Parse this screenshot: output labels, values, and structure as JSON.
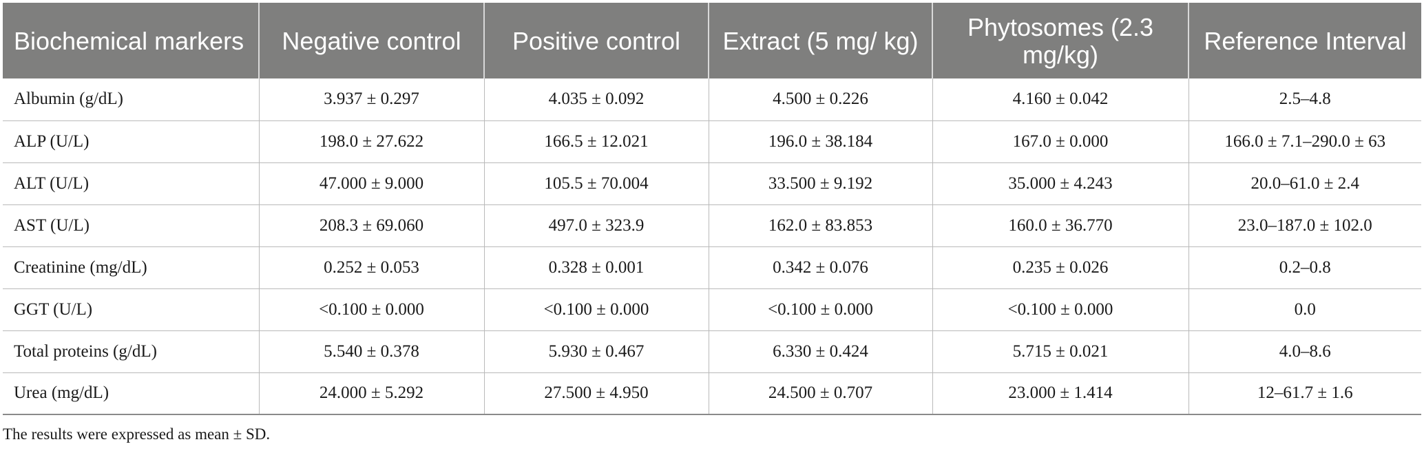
{
  "table": {
    "headers": [
      "Biochemical markers",
      "Negative control",
      "Positive control",
      "Extract (5 mg/ kg)",
      "Phytosomes (2.3 mg/kg)",
      "Reference Interval"
    ],
    "rows": [
      [
        "Albumin (g/dL)",
        "3.937 ± 0.297",
        "4.035 ± 0.092",
        "4.500 ± 0.226",
        "4.160 ± 0.042",
        "2.5–4.8"
      ],
      [
        "ALP (U/L)",
        "198.0 ± 27.622",
        "166.5 ± 12.021",
        "196.0 ± 38.184",
        "167.0 ± 0.000",
        "166.0 ± 7.1–290.0 ± 63"
      ],
      [
        "ALT (U/L)",
        "47.000 ± 9.000",
        "105.5 ± 70.004",
        "33.500 ± 9.192",
        "35.000 ± 4.243",
        "20.0–61.0 ± 2.4"
      ],
      [
        "AST (U/L)",
        "208.3 ± 69.060",
        "497.0 ± 323.9",
        "162.0 ± 83.853",
        "160.0 ± 36.770",
        "23.0–187.0 ± 102.0"
      ],
      [
        "Creatinine (mg/dL)",
        "0.252 ± 0.053",
        "0.328 ± 0.001",
        "0.342 ± 0.076",
        "0.235 ± 0.026",
        "0.2–0.8"
      ],
      [
        "GGT (U/L)",
        "<0.100 ± 0.000",
        "<0.100 ± 0.000",
        "<0.100 ± 0.000",
        "<0.100 ± 0.000",
        "0.0"
      ],
      [
        "Total proteins (g/dL)",
        "5.540 ± 0.378",
        "5.930 ± 0.467",
        "6.330 ± 0.424",
        "5.715 ± 0.021",
        "4.0–8.6"
      ],
      [
        "Urea (mg/dL)",
        "24.000 ± 5.292",
        "27.500 ± 4.950",
        "24.500 ± 0.707",
        "23.000 ± 1.414",
        "12–61.7 ± 1.6"
      ]
    ]
  },
  "footnote": "The results were expressed as mean ± SD.",
  "colors": {
    "header_background": "#7f7f7e",
    "header_text": "#ffffff",
    "grid_lines": "#b9b9b9"
  }
}
